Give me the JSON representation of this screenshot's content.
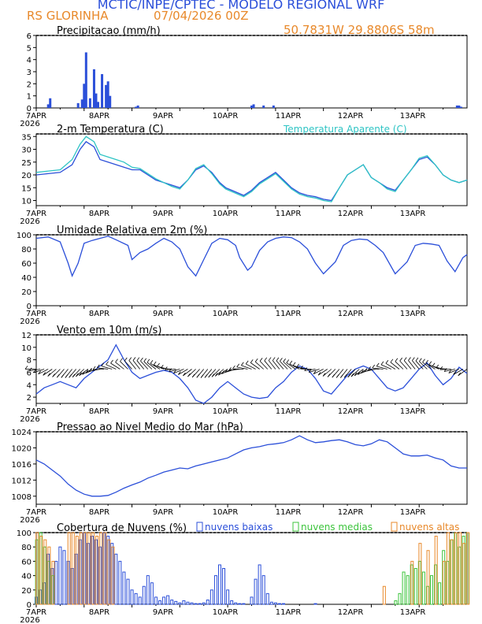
{
  "header": {
    "title": "MCTIC/INPE/CPTEC - MODELO REGIONAL WRF",
    "station": "RS GLORINHA",
    "run": "07/04/2026 00Z",
    "coords": "50.7831W 29.8806S 58m"
  },
  "colors": {
    "blue": "#2b4fd9",
    "orange": "#e8892b",
    "cyan": "#2ec4c4",
    "green": "#3cc43c",
    "black": "#000000"
  },
  "x_axis": {
    "day_labels": [
      "7APR",
      "8APR",
      "9APR",
      "10APR",
      "11APR",
      "12APR",
      "13APR"
    ],
    "year_label": "2026"
  },
  "chart_data": [
    {
      "type": "bar",
      "title": "Precipitacao (mm/h)",
      "ylim": [
        0,
        6
      ],
      "yticks": [
        0,
        1,
        2,
        3,
        4,
        5,
        6
      ],
      "x": [
        6,
        7,
        21,
        23,
        24,
        25,
        27,
        29,
        30,
        31,
        33,
        35,
        36,
        37,
        50,
        51,
        108,
        109,
        114,
        119,
        211,
        212,
        213
      ],
      "values": [
        0.3,
        0.8,
        0.4,
        0.7,
        2.0,
        4.6,
        0.8,
        3.2,
        1.2,
        0.5,
        2.8,
        1.9,
        2.2,
        1.0,
        0.1,
        0.2,
        0.2,
        0.3,
        0.2,
        0.2,
        0.2,
        0.2,
        0.1
      ]
    },
    {
      "type": "line",
      "title": "2-m Temperatura (C)",
      "legend": "Temperatura Aparente (C)",
      "ylim": [
        8,
        36
      ],
      "yticks": [
        10,
        15,
        20,
        25,
        30,
        35
      ],
      "series": [
        {
          "name": "2-m Temperatura",
          "x": [
            0,
            6,
            12,
            18,
            22,
            25,
            29,
            32,
            36,
            40,
            44,
            48,
            52,
            56,
            60,
            64,
            68,
            72,
            76,
            80,
            84,
            88,
            92,
            95,
            98,
            104,
            108,
            112,
            116,
            120,
            124,
            128,
            132,
            136,
            140,
            144,
            148,
            152,
            156,
            160,
            164,
            168,
            172,
            176,
            180,
            184,
            188,
            192,
            196,
            200,
            204,
            208,
            212,
            216
          ],
          "values": [
            20,
            20.5,
            21,
            24,
            30,
            33,
            31,
            26,
            25,
            24,
            23,
            22,
            22,
            20,
            18,
            17,
            16,
            15,
            18,
            22,
            23.5,
            21,
            17,
            15,
            14,
            12,
            14,
            17,
            19,
            21,
            18,
            15,
            13,
            12,
            11.5,
            10.5,
            10,
            15,
            20,
            22,
            24,
            19,
            17,
            15,
            14,
            18,
            22,
            26,
            27,
            24,
            20,
            18,
            17,
            18
          ]
        },
        {
          "name": "Temperatura Aparente",
          "x": [
            0,
            6,
            12,
            18,
            22,
            25,
            29,
            32,
            36,
            40,
            44,
            48,
            52,
            56,
            60,
            64,
            68,
            72,
            76,
            80,
            84,
            88,
            92,
            95,
            98,
            104,
            108,
            112,
            116,
            120,
            124,
            128,
            132,
            136,
            140,
            144,
            148,
            152,
            156,
            160,
            164,
            168,
            172,
            176,
            180,
            184,
            188,
            192,
            196,
            200,
            204,
            208,
            212,
            216
          ],
          "values": [
            21,
            21.5,
            22,
            26,
            32,
            35,
            33,
            28,
            27,
            26,
            25,
            23,
            22.5,
            20.5,
            18.5,
            17,
            15.5,
            14.5,
            18,
            22.5,
            24,
            20.5,
            16.5,
            14.5,
            13.5,
            11.5,
            13.5,
            16.5,
            18.5,
            20.5,
            17.5,
            14.5,
            12.5,
            11.5,
            11,
            10,
            9.5,
            15,
            20,
            22,
            24,
            19,
            17,
            14.5,
            13.5,
            18,
            22,
            26.5,
            27.5,
            24,
            20,
            18,
            17,
            18
          ]
        }
      ]
    },
    {
      "type": "line",
      "title": "Umidade Relativa em 2m (%)",
      "ylim": [
        0,
        100
      ],
      "yticks": [
        0,
        20,
        40,
        60,
        80,
        100
      ],
      "series": [
        {
          "name": "Umidade Relativa",
          "x": [
            0,
            6,
            12,
            16,
            18,
            21,
            24,
            28,
            32,
            36,
            40,
            46,
            48,
            52,
            56,
            60,
            64,
            68,
            72,
            76,
            80,
            84,
            88,
            92,
            96,
            100,
            102,
            106,
            108,
            112,
            116,
            120,
            124,
            128,
            132,
            136,
            140,
            144,
            150,
            154,
            158,
            162,
            166,
            170,
            174,
            180,
            186,
            190,
            194,
            198,
            202,
            206,
            210,
            214,
            216
          ],
          "values": [
            95,
            97,
            90,
            60,
            42,
            60,
            88,
            92,
            95,
            98,
            93,
            85,
            65,
            75,
            80,
            88,
            95,
            90,
            80,
            55,
            42,
            65,
            88,
            95,
            93,
            85,
            68,
            50,
            55,
            78,
            90,
            95,
            97,
            96,
            90,
            80,
            60,
            45,
            62,
            85,
            92,
            94,
            93,
            85,
            75,
            45,
            62,
            85,
            88,
            87,
            85,
            63,
            48,
            68,
            72
          ]
        }
      ]
    },
    {
      "type": "line",
      "title": "Vento em 10m (m/s)",
      "ylim": [
        1,
        12
      ],
      "yticks": [
        2,
        4,
        6,
        8,
        10,
        12
      ],
      "series": [
        {
          "name": "Vento 10m",
          "x": [
            0,
            4,
            8,
            12,
            16,
            20,
            24,
            28,
            32,
            36,
            40,
            44,
            48,
            52,
            56,
            60,
            64,
            68,
            72,
            76,
            80,
            84,
            88,
            92,
            96,
            100,
            104,
            108,
            112,
            116,
            120,
            124,
            128,
            132,
            136,
            140,
            144,
            148,
            152,
            156,
            160,
            164,
            168,
            172,
            176,
            180,
            184,
            188,
            192,
            196,
            200,
            204,
            208,
            212,
            216
          ],
          "values": [
            2.5,
            3.5,
            4,
            4.5,
            4,
            3.5,
            5,
            6,
            7,
            8,
            10.4,
            8,
            6,
            5,
            5.5,
            6,
            6.3,
            6,
            5,
            3.5,
            1.5,
            1,
            2,
            3.5,
            4.5,
            3.5,
            2.5,
            2,
            1.8,
            2,
            3.5,
            4.5,
            6,
            7,
            6.5,
            5,
            3,
            2.5,
            4,
            5.5,
            6.5,
            7,
            6.5,
            5,
            3.5,
            3,
            3.5,
            5,
            6.5,
            7.5,
            5.5,
            4,
            5,
            6.8,
            5.8
          ]
        }
      ]
    },
    {
      "type": "line",
      "title": "Pressao ao Nivel Medio do Mar (hPa)",
      "ylim": [
        1006,
        1024
      ],
      "yticks": [
        1008,
        1012,
        1016,
        1020,
        1024
      ],
      "series": [
        {
          "name": "Pressao",
          "x": [
            0,
            4,
            8,
            12,
            16,
            20,
            24,
            28,
            32,
            36,
            40,
            44,
            48,
            52,
            56,
            60,
            64,
            68,
            72,
            76,
            80,
            84,
            88,
            92,
            96,
            100,
            104,
            108,
            112,
            116,
            120,
            124,
            128,
            132,
            136,
            140,
            144,
            148,
            152,
            156,
            160,
            164,
            168,
            172,
            176,
            180,
            184,
            188,
            192,
            196,
            200,
            204,
            208,
            212,
            216
          ],
          "values": [
            1017,
            1016,
            1014.5,
            1013,
            1011,
            1009.5,
            1008.5,
            1008,
            1008,
            1008.2,
            1009,
            1010,
            1010.8,
            1011.5,
            1012.5,
            1013.2,
            1014,
            1014.5,
            1015,
            1014.8,
            1015.5,
            1016,
            1016.5,
            1017,
            1017.5,
            1018.5,
            1019.5,
            1020,
            1020.3,
            1020.8,
            1021,
            1021.3,
            1022,
            1023,
            1022,
            1021.3,
            1021.5,
            1021.8,
            1022,
            1021.5,
            1020.8,
            1020.5,
            1021,
            1022,
            1021.5,
            1020,
            1018.5,
            1018,
            1018,
            1018.2,
            1017.5,
            1017,
            1015.5,
            1015,
            1015
          ]
        }
      ]
    },
    {
      "type": "bar",
      "title": "Cobertura de Nuvens (%)",
      "legend": [
        "nuvens baixas",
        "nuvens medias",
        "nuvens altas"
      ],
      "ylim": [
        0,
        100
      ],
      "yticks": [
        0,
        20,
        40,
        60,
        80,
        100
      ],
      "series": [
        {
          "name": "nuvens baixas",
          "x": [
            0,
            2,
            4,
            6,
            8,
            10,
            12,
            14,
            16,
            18,
            20,
            22,
            24,
            26,
            28,
            30,
            32,
            34,
            36,
            38,
            40,
            42,
            44,
            46,
            48,
            50,
            52,
            54,
            56,
            58,
            60,
            62,
            64,
            66,
            68,
            70,
            72,
            74,
            76,
            78,
            80,
            82,
            84,
            86,
            88,
            90,
            92,
            94,
            96,
            98,
            100,
            102,
            104,
            106,
            108,
            110,
            112,
            114,
            116,
            118,
            120,
            122,
            124,
            126,
            128,
            130,
            132,
            134,
            136,
            138,
            140,
            142,
            144,
            146,
            148,
            150,
            152,
            154,
            156,
            158,
            160,
            162,
            164,
            166,
            168,
            170,
            172,
            174,
            176,
            178,
            180,
            182,
            184,
            186,
            188,
            190,
            192,
            194,
            196,
            198,
            200,
            202,
            204,
            206,
            208,
            210,
            212,
            214,
            216
          ],
          "values": [
            10,
            20,
            30,
            70,
            50,
            60,
            80,
            75,
            60,
            50,
            70,
            90,
            100,
            85,
            95,
            90,
            80,
            100,
            95,
            85,
            70,
            60,
            45,
            35,
            20,
            15,
            10,
            25,
            40,
            30,
            10,
            5,
            10,
            12,
            6,
            4,
            2,
            5,
            3,
            2,
            1,
            1,
            2,
            6,
            20,
            40,
            55,
            50,
            20,
            5,
            2,
            1,
            1,
            0,
            10,
            35,
            55,
            40,
            15,
            3,
            2,
            1,
            1,
            0,
            0,
            0,
            0,
            0,
            0,
            0,
            1,
            0,
            0,
            0,
            0,
            0,
            0,
            0,
            0,
            0,
            0,
            0,
            0,
            0,
            0,
            0,
            0,
            0,
            0,
            0,
            0,
            0,
            0,
            0,
            0,
            0,
            0,
            0,
            0,
            0,
            0,
            0,
            0,
            0,
            0,
            0,
            0,
            0,
            0
          ]
        },
        {
          "name": "nuvens medias",
          "x": [
            0,
            2,
            4,
            6,
            8,
            180,
            182,
            184,
            186,
            188,
            190,
            192,
            194,
            196,
            198,
            200,
            202,
            204,
            206,
            208,
            210,
            212,
            214,
            216
          ],
          "values": [
            90,
            100,
            80,
            60,
            40,
            5,
            15,
            45,
            40,
            55,
            50,
            60,
            45,
            25,
            40,
            55,
            30,
            75,
            60,
            90,
            100,
            80,
            95,
            100
          ]
        },
        {
          "name": "nuvens altas",
          "x": [
            0,
            2,
            4,
            6,
            8,
            16,
            18,
            20,
            22,
            24,
            26,
            28,
            30,
            32,
            34,
            36,
            38,
            174,
            188,
            192,
            196,
            200,
            204,
            206,
            208,
            210,
            212,
            214,
            216
          ],
          "values": [
            100,
            95,
            90,
            80,
            60,
            100,
            100,
            95,
            100,
            100,
            100,
            100,
            95,
            100,
            100,
            90,
            80,
            25,
            60,
            85,
            75,
            95,
            60,
            100,
            90,
            100,
            100,
            85,
            100
          ]
        }
      ]
    }
  ]
}
